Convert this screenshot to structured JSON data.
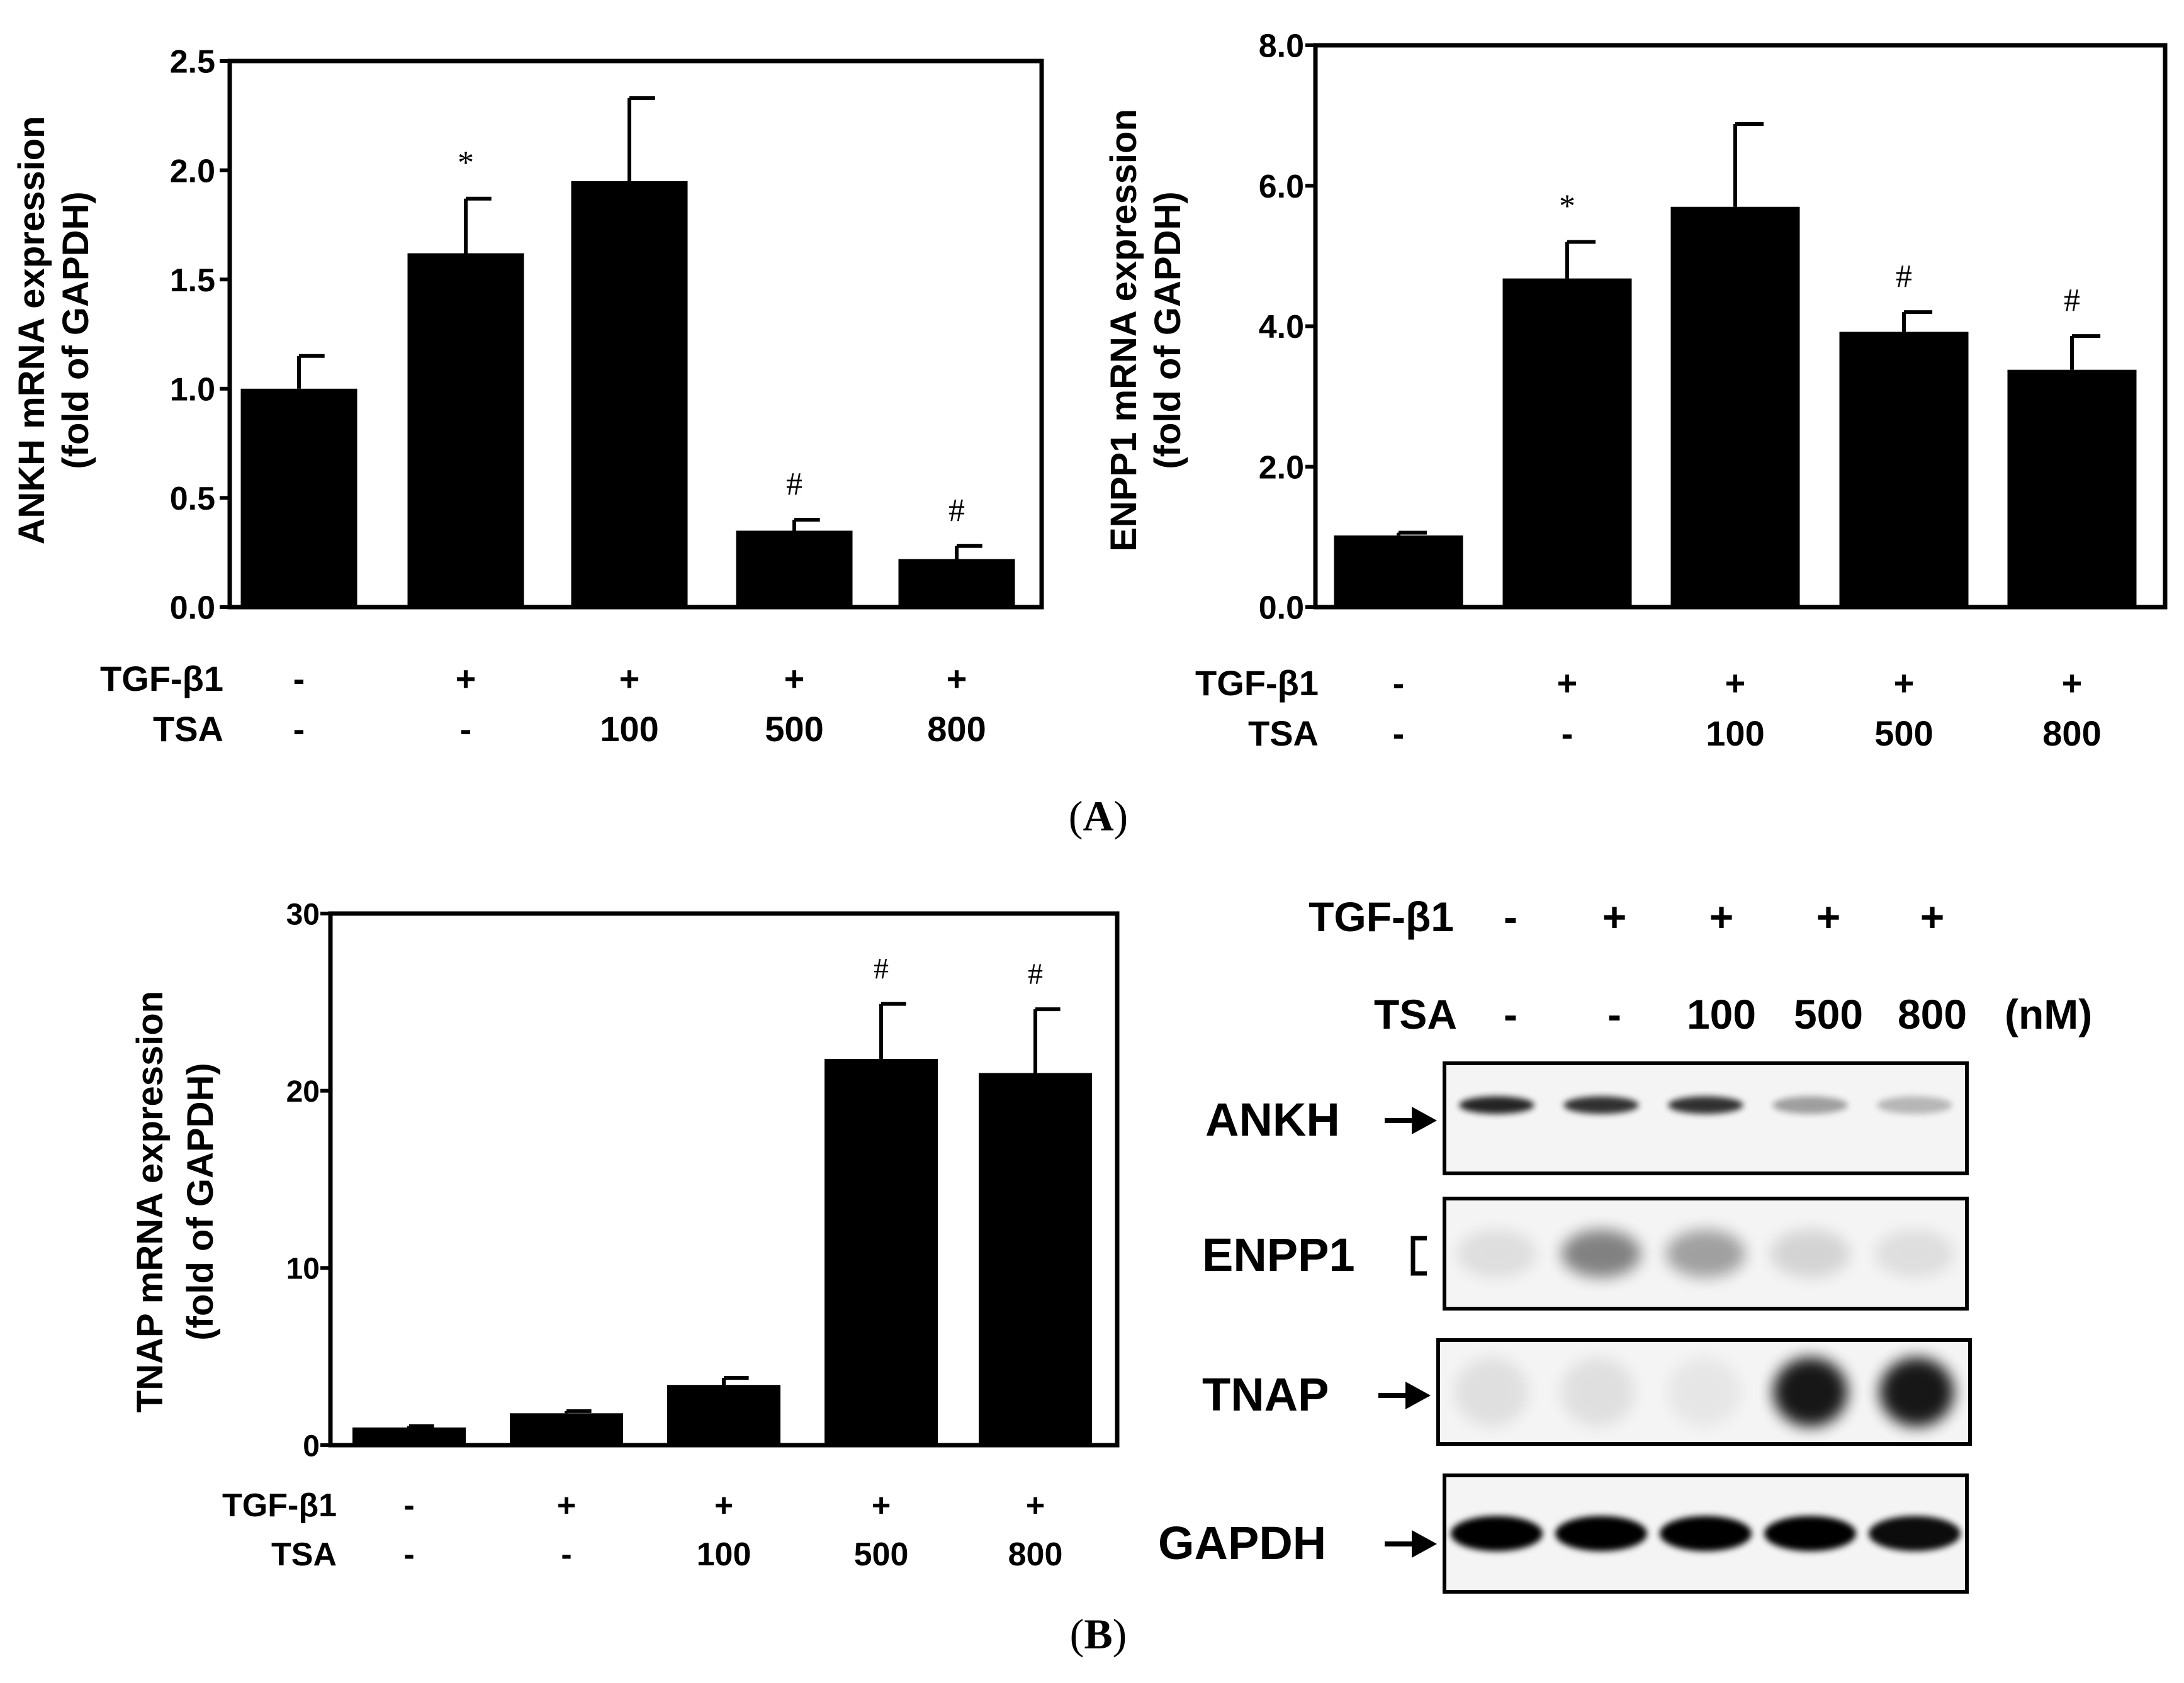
{
  "panel_labels": {
    "A": "(A)",
    "A_letter": "A",
    "B": "(B)",
    "B_letter": "B"
  },
  "chart_data": [
    {
      "id": "ankh",
      "type": "bar",
      "ylabel": "ANKH mRNA expression",
      "ylabel2": "(fold of GAPDH)",
      "ylim": [
        0,
        2.5
      ],
      "yticks": [
        0,
        0.5,
        1.0,
        1.5,
        2.0,
        2.5
      ],
      "ytick_labels": [
        "0.0",
        "0.5",
        "1.0",
        "1.5",
        "2.0",
        "2.5"
      ],
      "categories": [
        "TGF-β1 - / TSA -",
        "TGF-β1 + / TSA -",
        "TGF-β1 + / TSA 100",
        "TGF-β1 + / TSA 500",
        "TGF-β1 + / TSA 800"
      ],
      "values": [
        1.0,
        1.62,
        1.95,
        0.35,
        0.22
      ],
      "errors": [
        0.15,
        0.25,
        0.38,
        0.05,
        0.06
      ],
      "markers": [
        "",
        "*",
        "",
        "#",
        "#"
      ],
      "row_labels": [
        "TGF-β1",
        "TSA"
      ],
      "tgf_row": [
        "-",
        "+",
        "+",
        "+",
        "+"
      ],
      "tsa_row": [
        "-",
        "-",
        "100",
        "500",
        "800"
      ]
    },
    {
      "id": "enpp1",
      "type": "bar",
      "ylabel": "ENPP1 mRNA expression",
      "ylabel2": "(fold of GAPDH)",
      "ylim": [
        0,
        8.0
      ],
      "yticks": [
        0,
        2,
        4,
        6,
        8
      ],
      "ytick_labels": [
        "0.0",
        "2.0",
        "4.0",
        "6.0",
        "8.0"
      ],
      "categories": [
        "TGF-β1 - / TSA -",
        "TGF-β1 + / TSA -",
        "TGF-β1 + / TSA 100",
        "TGF-β1 + / TSA 500",
        "TGF-β1 + / TSA 800"
      ],
      "values": [
        1.02,
        4.68,
        5.7,
        3.92,
        3.38
      ],
      "errors": [
        0.04,
        0.52,
        1.18,
        0.28,
        0.48
      ],
      "markers": [
        "",
        "*",
        "",
        "#",
        "#"
      ],
      "row_labels": [
        "TGF-β1",
        "TSA"
      ],
      "tgf_row": [
        "-",
        "+",
        "+",
        "+",
        "+"
      ],
      "tsa_row": [
        "-",
        "-",
        "100",
        "500",
        "800"
      ]
    },
    {
      "id": "tnap",
      "type": "bar",
      "ylabel": "TNAP mRNA expression",
      "ylabel2": "(fold of GAPDH)",
      "ylim": [
        0,
        30
      ],
      "yticks": [
        0,
        10,
        20,
        30
      ],
      "ytick_labels": [
        "0",
        "10",
        "20",
        "30"
      ],
      "categories": [
        "TGF-β1 - / TSA -",
        "TGF-β1 + / TSA -",
        "TGF-β1 + / TSA 100",
        "TGF-β1 + / TSA 500",
        "TGF-β1 + / TSA 800"
      ],
      "values": [
        1.0,
        1.8,
        3.4,
        21.8,
        21.0
      ],
      "errors": [
        0.08,
        0.12,
        0.4,
        3.1,
        3.6
      ],
      "markers": [
        "",
        "",
        "",
        "#",
        "#"
      ],
      "row_labels": [
        "TGF-β1",
        "TSA"
      ],
      "tgf_row": [
        "-",
        "+",
        "+",
        "+",
        "+"
      ],
      "tsa_row": [
        "-",
        "-",
        "100",
        "500",
        "800"
      ]
    },
    {
      "id": "western",
      "type": "blot",
      "header_labels": [
        "TGF-β1",
        "TSA"
      ],
      "tgf_row": [
        "-",
        "+",
        "+",
        "+",
        "+"
      ],
      "tsa_row": [
        "-",
        "-",
        "100",
        "500",
        "800"
      ],
      "unit": "(nM)",
      "bands": [
        {
          "name": "ANKH",
          "marker": "arrow",
          "intensity": [
            0.85,
            0.8,
            0.8,
            0.35,
            0.25
          ]
        },
        {
          "name": "ENPP1",
          "marker": "bracket",
          "intensity": [
            0.1,
            0.55,
            0.4,
            0.15,
            0.1
          ]
        },
        {
          "name": "TNAP",
          "marker": "arrow",
          "intensity": [
            0.08,
            0.08,
            0.05,
            0.9,
            0.9
          ]
        },
        {
          "name": "GAPDH",
          "marker": "arrow",
          "intensity": [
            1.0,
            1.0,
            1.0,
            1.0,
            0.95
          ]
        }
      ]
    }
  ]
}
